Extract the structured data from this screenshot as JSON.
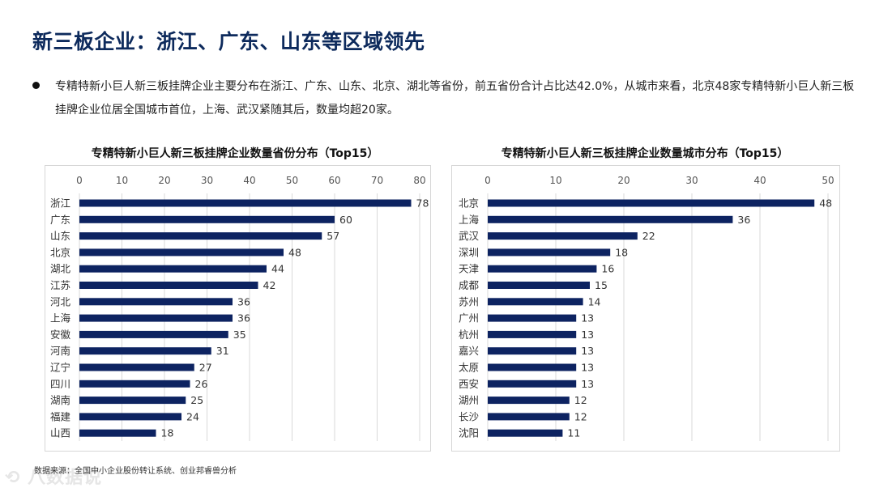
{
  "page": {
    "title": "新三板企业：浙江、广东、山东等区域领先",
    "summary": "专精特新小巨人新三板挂牌企业主要分布在浙江、广东、山东、北京、湖北等省份，前五省份合计占比达42.0%，从城市来看，北京48家专精特新小巨人新三板挂牌企业位居全国城市首位，上海、武汉紧随其后，数量均超20家。",
    "source": "数据来源：全国中小企业股份转让系统、创业邦睿兽分析",
    "watermark": "八数据说"
  },
  "colors": {
    "title": "#0d2a5c",
    "bar": "#0d2361",
    "grid": "#d9d9d9"
  },
  "chart_data": [
    {
      "type": "bar",
      "orientation": "horizontal",
      "title": "专精特新小巨人新三板挂牌企业数量省份分布（Top15）",
      "categories": [
        "浙江",
        "广东",
        "山东",
        "北京",
        "湖北",
        "江苏",
        "河北",
        "上海",
        "安徽",
        "河南",
        "辽宁",
        "四川",
        "湖南",
        "福建",
        "山西"
      ],
      "values": [
        78,
        60,
        57,
        48,
        44,
        42,
        36,
        36,
        35,
        31,
        27,
        26,
        25,
        24,
        18
      ],
      "xlim": [
        0,
        80
      ],
      "xticks": [
        0,
        10,
        20,
        30,
        40,
        50,
        60,
        70,
        80
      ],
      "axis_position": "top",
      "grid": true
    },
    {
      "type": "bar",
      "orientation": "horizontal",
      "title": "专精特新小巨人新三板挂牌企业数量城市分布（Top15）",
      "categories": [
        "北京",
        "上海",
        "武汉",
        "深圳",
        "天津",
        "成都",
        "苏州",
        "广州",
        "杭州",
        "嘉兴",
        "太原",
        "西安",
        "湖州",
        "长沙",
        "沈阳"
      ],
      "values": [
        48,
        36,
        22,
        18,
        16,
        15,
        14,
        13,
        13,
        13,
        13,
        13,
        12,
        12,
        11
      ],
      "xlim": [
        0,
        50
      ],
      "xticks": [
        0,
        10,
        20,
        30,
        40,
        50
      ],
      "axis_position": "top",
      "grid": true
    }
  ]
}
